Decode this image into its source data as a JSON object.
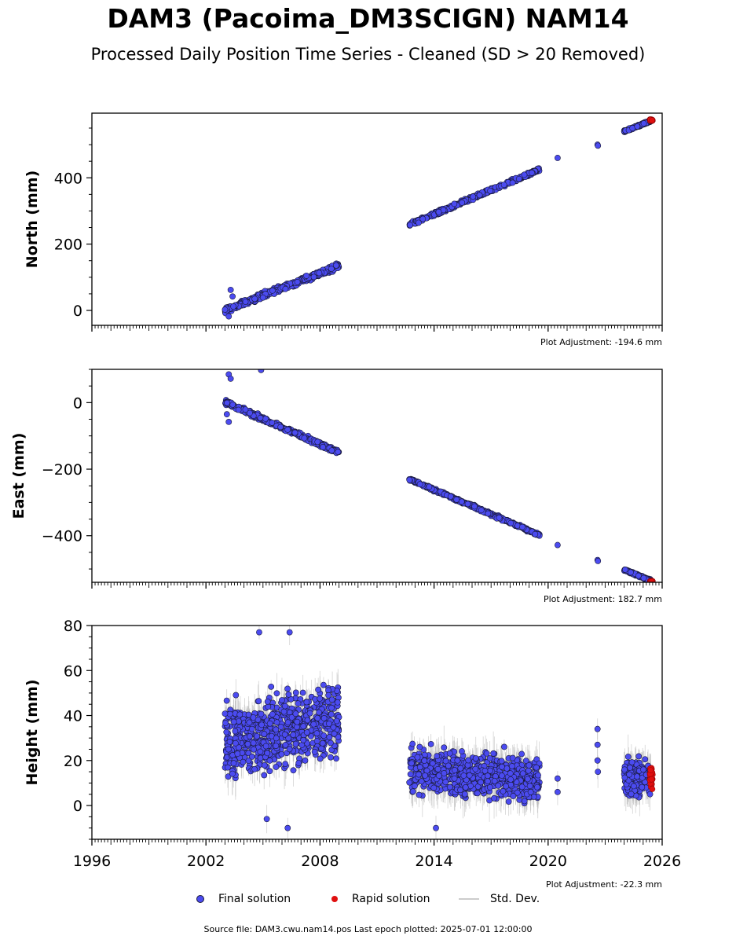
{
  "title": "DAM3 (Pacoima_DM3SCIGN) NAM14",
  "subtitle": "Processed Daily Position Time Series - Cleaned (SD > 20 Removed)",
  "source": "Source file: DAM3.cwu.nam14.pos  Last epoch plotted: 2025-07-01 12:00:00",
  "legend": {
    "final": "Final solution",
    "rapid": "Rapid solution",
    "std": "Std. Dev."
  },
  "colors": {
    "final": "#4b4bf0",
    "rapid": "#e01010",
    "std": "#b0b0b0",
    "marker_edge": "#1a1a3a"
  },
  "chart_data": [
    {
      "type": "scatter",
      "ylabel": "North (mm)",
      "adjustment": "Plot Adjustment: -194.6 mm",
      "xlim": [
        1996,
        2026
      ],
      "ylim": [
        -45,
        595
      ],
      "yticks": [
        0,
        200,
        400
      ],
      "segments": [
        {
          "x": [
            2003.0,
            2009.0
          ],
          "y": [
            0,
            135
          ],
          "noise": 8
        },
        {
          "x": [
            2012.7,
            2019.55
          ],
          "y": [
            258,
            425
          ],
          "noise": 5
        }
      ],
      "isolated": [
        {
          "x": 2003.3,
          "y": 62
        },
        {
          "x": 2003.4,
          "y": 42
        },
        {
          "x": 2003.2,
          "y": -18
        },
        {
          "x": 2020.5,
          "y": 460
        },
        {
          "x": 2022.6,
          "y": 500
        },
        {
          "x": 2022.62,
          "y": 497
        }
      ],
      "recent": {
        "x": [
          2024.0,
          2025.4
        ],
        "y": [
          540,
          572
        ],
        "noise": 3
      },
      "rapid": {
        "x": [
          2025.35,
          2025.5
        ],
        "y": [
          572,
          576
        ]
      },
      "has_std": false
    },
    {
      "type": "scatter",
      "ylabel": "East (mm)",
      "adjustment": "Plot Adjustment: 182.7 mm",
      "xlim": [
        1996,
        2026
      ],
      "ylim": [
        -540,
        100
      ],
      "yticks": [
        -400,
        -200,
        0
      ],
      "segments": [
        {
          "x": [
            2003.0,
            2009.0
          ],
          "y": [
            2,
            -150
          ],
          "noise": 6
        },
        {
          "x": [
            2012.7,
            2019.55
          ],
          "y": [
            -230,
            -398
          ],
          "noise": 4
        }
      ],
      "isolated": [
        {
          "x": 2003.2,
          "y": 85
        },
        {
          "x": 2003.3,
          "y": 72
        },
        {
          "x": 2004.9,
          "y": 98
        },
        {
          "x": 2003.2,
          "y": -58
        },
        {
          "x": 2003.1,
          "y": -35
        },
        {
          "x": 2020.5,
          "y": -428
        },
        {
          "x": 2022.6,
          "y": -473
        },
        {
          "x": 2022.62,
          "y": -476
        }
      ],
      "recent": {
        "x": [
          2024.0,
          2025.4
        ],
        "y": [
          -502,
          -535
        ],
        "noise": 3
      },
      "rapid": {
        "x": [
          2025.35,
          2025.5
        ],
        "y": [
          -536,
          -540
        ]
      },
      "has_std": false
    },
    {
      "type": "scatter",
      "ylabel": "Height (mm)",
      "adjustment": "Plot Adjustment: -22.3 mm",
      "xlim": [
        1996,
        2026
      ],
      "ylim": [
        -15,
        80
      ],
      "yticks": [
        0,
        20,
        40,
        60,
        80
      ],
      "xticks": [
        1996,
        2002,
        2008,
        2014,
        2020,
        2026
      ],
      "segments": [
        {
          "x": [
            2003.0,
            2009.0
          ],
          "y": [
            28,
            38
          ],
          "noise": 14
        },
        {
          "x": [
            2012.7,
            2019.55
          ],
          "y": [
            16,
            12
          ],
          "noise": 9
        }
      ],
      "isolated": [
        {
          "x": 2004.8,
          "y": 77
        },
        {
          "x": 2006.4,
          "y": 77
        },
        {
          "x": 2006.3,
          "y": -10
        },
        {
          "x": 2005.2,
          "y": -6
        },
        {
          "x": 2014.1,
          "y": -10
        },
        {
          "x": 2020.5,
          "y": 12
        },
        {
          "x": 2020.5,
          "y": 6
        },
        {
          "x": 2022.6,
          "y": 34
        },
        {
          "x": 2022.6,
          "y": 27
        },
        {
          "x": 2022.6,
          "y": 20
        },
        {
          "x": 2022.62,
          "y": 15
        }
      ],
      "recent": {
        "x": [
          2024.0,
          2025.4
        ],
        "y": [
          12,
          12
        ],
        "noise": 8
      },
      "rapid": {
        "x": [
          2025.35,
          2025.5
        ],
        "y": [
          7,
          17
        ]
      },
      "has_std": true
    }
  ]
}
